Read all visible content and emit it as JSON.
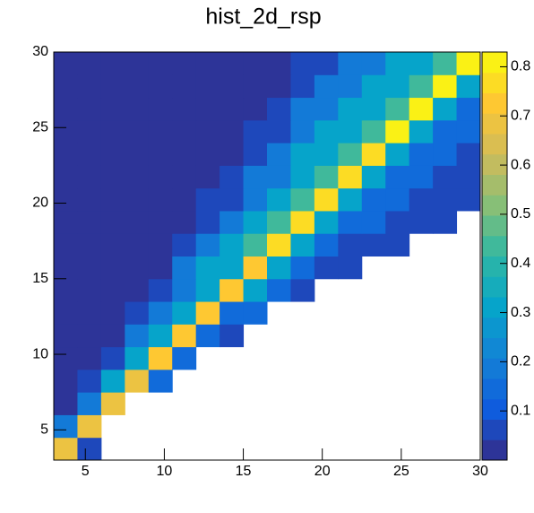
{
  "chart_data": {
    "type": "heatmap",
    "title": "hist_2d_rsp",
    "xbins": [
      3,
      4.5,
      6,
      7.5,
      9,
      10.5,
      12,
      13.5,
      15,
      16.5,
      18,
      19.5,
      21,
      22.5,
      24,
      25.5,
      27,
      28.5,
      30
    ],
    "ybins": [
      3,
      4.5,
      6,
      7.5,
      9,
      10.5,
      12,
      13.5,
      15,
      16.5,
      18,
      19.5,
      21,
      22.5,
      24,
      25.5,
      27,
      28.5,
      30
    ],
    "z": [
      [
        0.68,
        0.05,
        null,
        null,
        null,
        null,
        null,
        null,
        null,
        null,
        null,
        null,
        null,
        null,
        null,
        null,
        null,
        null
      ],
      [
        0.18,
        0.69,
        null,
        null,
        null,
        null,
        null,
        null,
        null,
        null,
        null,
        null,
        null,
        null,
        null,
        null,
        null,
        null
      ],
      [
        0.03,
        0.18,
        0.7,
        null,
        null,
        null,
        null,
        null,
        null,
        null,
        null,
        null,
        null,
        null,
        null,
        null,
        null,
        null
      ],
      [
        0.03,
        0.08,
        0.3,
        0.7,
        0.15,
        null,
        null,
        null,
        null,
        null,
        null,
        null,
        null,
        null,
        null,
        null,
        null,
        null
      ],
      [
        0.03,
        0.03,
        0.08,
        0.3,
        0.71,
        0.15,
        null,
        null,
        null,
        null,
        null,
        null,
        null,
        null,
        null,
        null,
        null,
        null
      ],
      [
        0.03,
        0.03,
        0.03,
        0.18,
        0.3,
        0.72,
        0.15,
        0.05,
        null,
        null,
        null,
        null,
        null,
        null,
        null,
        null,
        null,
        null
      ],
      [
        0.03,
        0.03,
        0.03,
        0.08,
        0.18,
        0.3,
        0.73,
        0.15,
        0.15,
        null,
        null,
        null,
        null,
        null,
        null,
        null,
        null,
        null
      ],
      [
        0.03,
        0.03,
        0.03,
        0.03,
        0.08,
        0.18,
        0.3,
        0.74,
        0.3,
        0.15,
        0.05,
        null,
        null,
        null,
        null,
        null,
        null,
        null
      ],
      [
        0.03,
        0.03,
        0.03,
        0.03,
        0.03,
        0.18,
        0.3,
        0.3,
        0.74,
        0.3,
        0.15,
        0.05,
        0.05,
        null,
        null,
        null,
        null,
        null
      ],
      [
        0.03,
        0.03,
        0.03,
        0.03,
        0.03,
        0.08,
        0.18,
        0.3,
        0.45,
        0.75,
        0.3,
        0.15,
        0.05,
        0.05,
        0.05,
        null,
        null,
        null
      ],
      [
        0.03,
        0.03,
        0.03,
        0.03,
        0.03,
        0.03,
        0.08,
        0.18,
        0.3,
        0.45,
        0.76,
        0.3,
        0.15,
        0.15,
        0.05,
        0.05,
        0.05,
        null
      ],
      [
        0.03,
        0.03,
        0.03,
        0.03,
        0.03,
        0.03,
        0.08,
        0.08,
        0.18,
        0.3,
        0.45,
        0.77,
        0.3,
        0.15,
        0.15,
        0.05,
        0.05,
        0.05
      ],
      [
        0.03,
        0.03,
        0.03,
        0.03,
        0.03,
        0.03,
        0.03,
        0.08,
        0.18,
        0.18,
        0.3,
        0.45,
        0.78,
        0.3,
        0.15,
        0.15,
        0.05,
        0.05
      ],
      [
        0.03,
        0.03,
        0.03,
        0.03,
        0.03,
        0.03,
        0.03,
        0.03,
        0.08,
        0.18,
        0.3,
        0.3,
        0.45,
        0.78,
        0.3,
        0.15,
        0.15,
        0.05
      ],
      [
        0.03,
        0.03,
        0.03,
        0.03,
        0.03,
        0.03,
        0.03,
        0.03,
        0.08,
        0.08,
        0.18,
        0.3,
        0.3,
        0.45,
        0.79,
        0.3,
        0.15,
        0.15
      ],
      [
        0.03,
        0.03,
        0.03,
        0.03,
        0.03,
        0.03,
        0.03,
        0.03,
        0.03,
        0.08,
        0.18,
        0.18,
        0.3,
        0.3,
        0.45,
        0.8,
        0.3,
        0.15
      ],
      [
        0.03,
        0.03,
        0.03,
        0.03,
        0.03,
        0.03,
        0.03,
        0.03,
        0.03,
        0.03,
        0.08,
        0.18,
        0.18,
        0.3,
        0.3,
        0.45,
        0.81,
        0.3
      ],
      [
        0.03,
        0.03,
        0.03,
        0.03,
        0.03,
        0.03,
        0.03,
        0.03,
        0.03,
        0.03,
        0.08,
        0.08,
        0.18,
        0.18,
        0.3,
        0.3,
        0.45,
        0.82
      ]
    ],
    "xlim": [
      3,
      30
    ],
    "xticks": [
      5,
      10,
      15,
      20,
      25,
      30
    ],
    "ylim": [
      3,
      30
    ],
    "yticks": [
      5,
      10,
      15,
      20,
      25,
      30
    ],
    "zlim": [
      0,
      0.83
    ],
    "zticks": [
      0.1,
      0.2,
      0.3,
      0.4,
      0.5,
      0.6,
      0.7,
      0.8
    ],
    "colorscale": [
      "#352a87",
      "#0f5cdd",
      "#1481d6",
      "#06a4ca",
      "#2eb7a4",
      "#87bf77",
      "#d1bb59",
      "#fec832",
      "#f9fb0e"
    ],
    "levels": 20
  }
}
